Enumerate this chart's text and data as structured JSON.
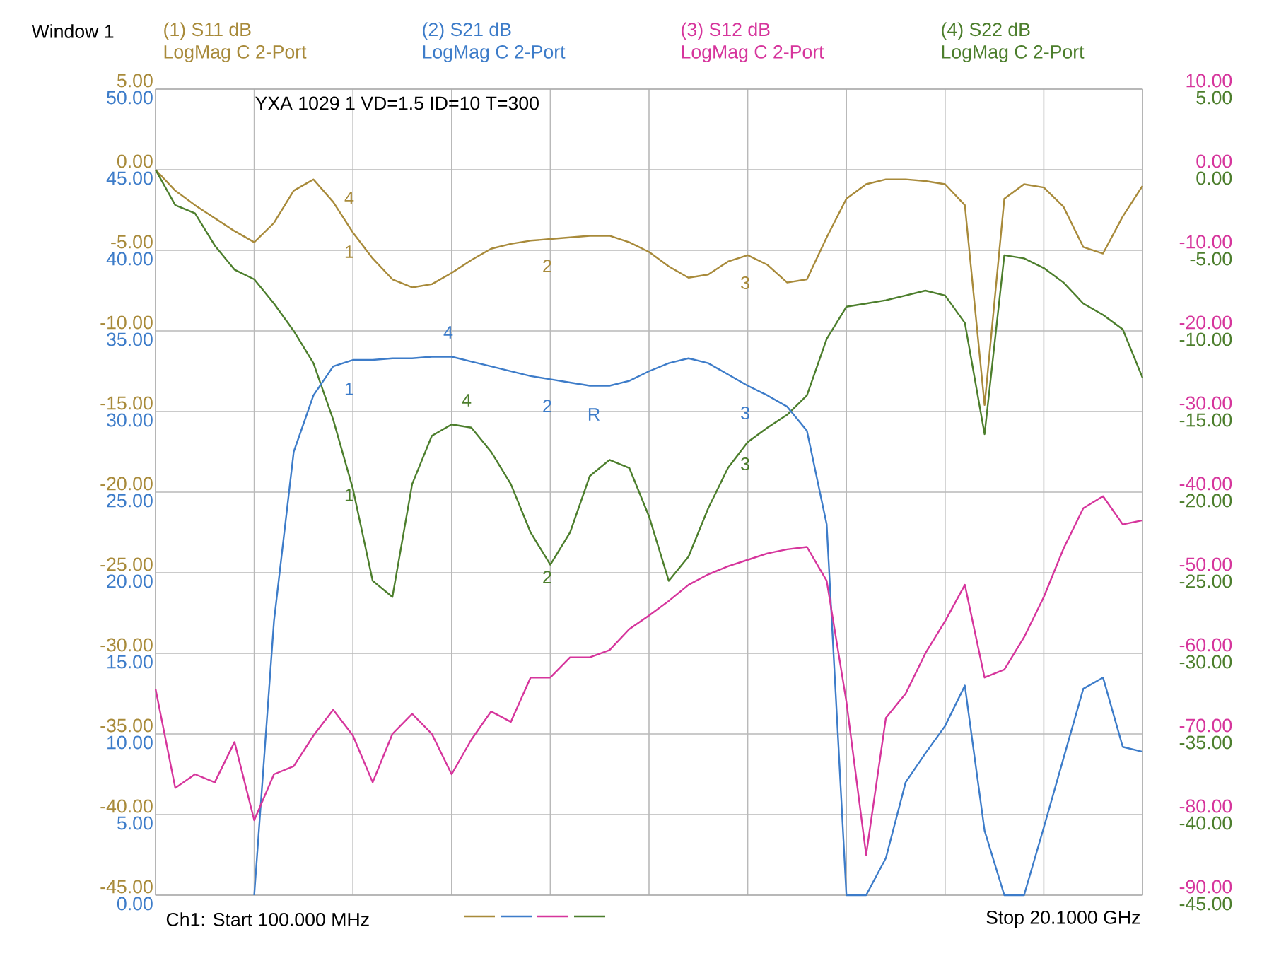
{
  "chart_data": {
    "type": "line",
    "categories": [
      null,
      null,
      null,
      null,
      null,
      null,
      null,
      null,
      null,
      null,
      null,
      null,
      null,
      null,
      null,
      null,
      null,
      null,
      null,
      null,
      null,
      null,
      null,
      null,
      null,
      null,
      null,
      null,
      null,
      null,
      null,
      null,
      null,
      null,
      null,
      null,
      null,
      null,
      null,
      null,
      null,
      null,
      null,
      null,
      null,
      null,
      null,
      null,
      null,
      null,
      null
    ],
    "series": [
      {
        "name": "(1) S11 dB",
        "color": "#a88a3a",
        "axis": "y",
        "values": [
          0,
          -1.3,
          -2.2,
          -3.0,
          -3.8,
          -4.5,
          -3.3,
          -1.3,
          -0.6,
          -2.0,
          -3.9,
          -5.5,
          -6.8,
          -7.3,
          -7.1,
          -6.4,
          -5.6,
          -4.9,
          -4.6,
          -4.4,
          -4.3,
          -4.2,
          -4.1,
          -4.1,
          -4.5,
          -5.1,
          -6.0,
          -6.7,
          -6.5,
          -5.7,
          -5.3,
          -5.9,
          -7.0,
          -6.8,
          -4.2,
          -1.8,
          -0.9,
          -0.6,
          -0.6,
          -0.7,
          -0.9,
          -2.2,
          -14.6,
          -1.8,
          -0.9,
          -1.1,
          -2.3,
          -4.8,
          -5.2,
          -2.9,
          -1.0
        ]
      },
      {
        "name": "(2) S21 dB",
        "color": "#3d7cc9",
        "axis": "y2",
        "values": [
          null,
          null,
          null,
          null,
          null,
          0,
          17,
          27.5,
          31.0,
          32.8,
          33.2,
          33.2,
          33.3,
          33.3,
          33.4,
          33.4,
          33.1,
          32.8,
          32.5,
          32.2,
          32.0,
          31.8,
          31.6,
          31.6,
          31.9,
          32.5,
          33.0,
          33.3,
          33.0,
          32.3,
          31.6,
          31.0,
          30.3,
          28.8,
          23.0,
          0,
          0,
          2.3,
          7.0,
          8.8,
          10.5,
          13.0,
          4.0,
          0,
          0,
          4.2,
          8.5,
          12.8,
          13.5,
          9.2,
          8.9
        ]
      },
      {
        "name": "(3) S12 dB",
        "color": "#d6359c",
        "axis": "y3",
        "values": [
          -64.4,
          -76.7,
          -75,
          -76,
          -71,
          -80.7,
          -75,
          -74,
          -70.2,
          -67,
          -70.2,
          -76,
          -70,
          -67.5,
          -70,
          -75,
          -70.7,
          -67.2,
          -68.5,
          -63,
          -63,
          -60.5,
          -60.5,
          -59.6,
          -57,
          -55.3,
          -53.5,
          -51.5,
          -50.2,
          -49.2,
          -48.4,
          -47.6,
          -47.1,
          -46.8,
          -51,
          -66,
          -85,
          -68,
          -65,
          -60,
          -56,
          -51.5,
          -63,
          -62,
          -58,
          -53,
          -47,
          -42,
          -40.5,
          -44,
          -43.5
        ]
      },
      {
        "name": "(4) S22 dB",
        "color": "#4c7e2c",
        "axis": "y",
        "values": [
          0,
          -2.2,
          -2.7,
          -4.7,
          -6.2,
          -6.8,
          -8.3,
          -10.0,
          -12.0,
          -15.5,
          -19.8,
          -25.5,
          -26.5,
          -19.5,
          -16.5,
          -15.8,
          -16.0,
          -17.5,
          -19.5,
          -22.5,
          -24.5,
          -22.5,
          -19.0,
          -18.0,
          -18.5,
          -21.5,
          -25.5,
          -24,
          -21,
          -18.5,
          -16.9,
          -16.0,
          -15.2,
          -14.0,
          -10.5,
          -8.5,
          -8.3,
          -8.1,
          -7.8,
          -7.5,
          -7.8,
          -9.5,
          -16.4,
          -5.3,
          -5.5,
          -6.1,
          -7.0,
          -8.3,
          -9.0,
          -9.9,
          -12.9
        ]
      }
    ],
    "ylim": [
      -45,
      5
    ],
    "yticks": [
      {
        "value": -45,
        "label": "-45.00"
      },
      {
        "value": -40,
        "label": "-40.00"
      },
      {
        "value": -35,
        "label": "-35.00"
      },
      {
        "value": -30,
        "label": "-30.00"
      },
      {
        "value": -25,
        "label": "-25.00"
      },
      {
        "value": -20,
        "label": "-20.00"
      },
      {
        "value": -15,
        "label": "-15.00"
      },
      {
        "value": -10,
        "label": "-10.00"
      },
      {
        "value": -5,
        "label": "-5.00"
      },
      {
        "value": 0,
        "label": "0.00"
      },
      {
        "value": 5,
        "label": "5.00"
      }
    ],
    "y2lim": [
      0,
      50
    ],
    "y2ticks": [
      {
        "value": 0,
        "label": "0.00"
      },
      {
        "value": 5,
        "label": "5.00"
      },
      {
        "value": 10,
        "label": "10.00"
      },
      {
        "value": 15,
        "label": "15.00"
      },
      {
        "value": 20,
        "label": "20.00"
      },
      {
        "value": 25,
        "label": "25.00"
      },
      {
        "value": 30,
        "label": "30.00"
      },
      {
        "value": 35,
        "label": "35.00"
      },
      {
        "value": 40,
        "label": "40.00"
      },
      {
        "value": 45,
        "label": "45.00"
      },
      {
        "value": 50,
        "label": "50.00"
      }
    ],
    "y3lim": [
      -90,
      10
    ],
    "y3ticks": [
      {
        "value": -90,
        "label": "-90.00"
      },
      {
        "value": -80,
        "label": "-80.00"
      },
      {
        "value": -70,
        "label": "-70.00"
      },
      {
        "value": -60,
        "label": "-60.00"
      },
      {
        "value": -50,
        "label": "-50.00"
      },
      {
        "value": -40,
        "label": "-40.00"
      },
      {
        "value": -30,
        "label": "-30.00"
      },
      {
        "value": -20,
        "label": "-20.00"
      },
      {
        "value": -10,
        "label": "-10.00"
      },
      {
        "value": 0,
        "label": "0.00"
      },
      {
        "value": 10,
        "label": "10.00"
      }
    ],
    "grid": true,
    "annotations": [
      "Window 1",
      "LogMag C  2-Port",
      "LogMag C  2-Port",
      "LogMag C  2-Port",
      "LogMag C  2-Port",
      "YXA 1029 1 VD=1.5 ID=10 T=300",
      "Ch1: Start  100.000 MHz",
      "Stop  20.1000 GHz",
      "4",
      "1",
      "2",
      "3",
      "4",
      "1",
      "2",
      "R",
      "3",
      "4",
      "1",
      "2",
      "3"
    ]
  }
}
